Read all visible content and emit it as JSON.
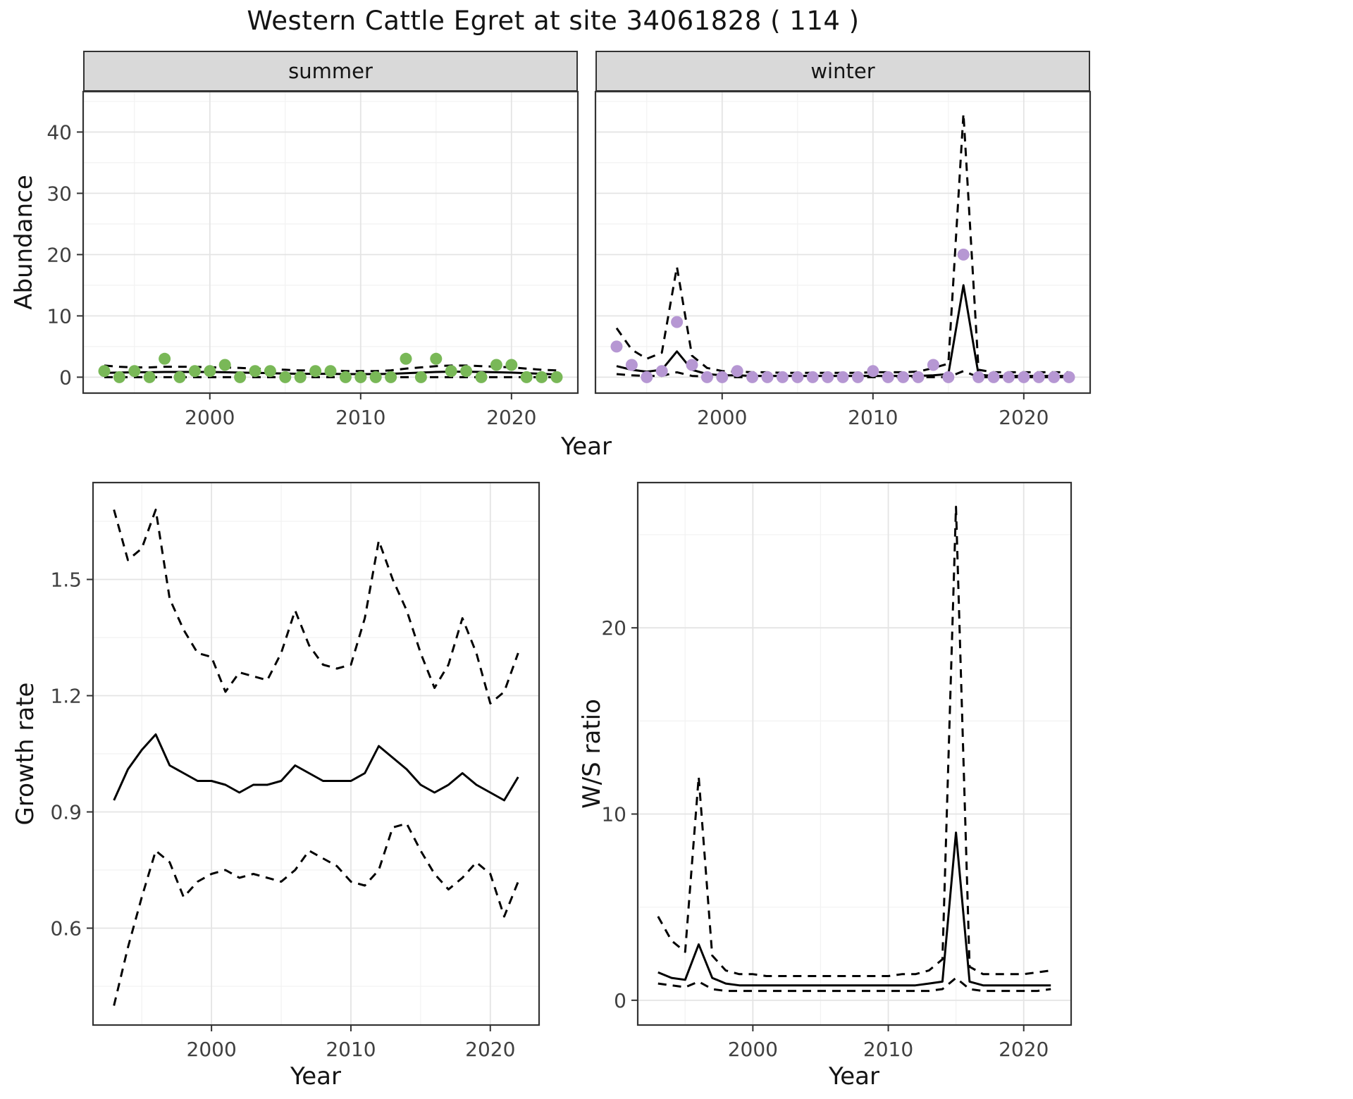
{
  "title": "Western Cattle Egret at site 34061828 ( 114 )",
  "facets": {
    "summer": "summer",
    "winter": "winter"
  },
  "axis_labels": {
    "abundance": "Abundance",
    "year_top": "Year",
    "growth": "Growth rate",
    "ws": "W/S ratio",
    "year_growth": "Year",
    "year_ws": "Year"
  },
  "colors": {
    "summer_point": "#79b857",
    "winter_point": "#b697d3",
    "line": "#000000",
    "grid_major": "#e4e4e4",
    "grid_minor": "#f2f2f2",
    "panel_border": "#333333",
    "tick": "#333333",
    "axis_text": "#404040",
    "strip_bg": "#d9d9d9"
  },
  "chart_data": [
    {
      "id": "summer",
      "type": "line+scatter",
      "facet_label": "summer",
      "xlabel": "Year",
      "ylabel": "Abundance",
      "xlim": [
        1991.6,
        2024.4
      ],
      "ylim": [
        -2.6,
        46.6
      ],
      "xticks": [
        2000,
        2010,
        2020
      ],
      "yticks": [
        0,
        10,
        20,
        30,
        40
      ],
      "xminor": [
        1995,
        2005,
        2015
      ],
      "yminor": [
        5,
        15,
        25,
        35,
        45
      ],
      "years": [
        1993,
        1994,
        1995,
        1996,
        1997,
        1998,
        1999,
        2000,
        2001,
        2002,
        2003,
        2004,
        2005,
        2006,
        2007,
        2008,
        2009,
        2010,
        2011,
        2012,
        2013,
        2014,
        2015,
        2016,
        2017,
        2018,
        2019,
        2020,
        2021,
        2022,
        2023
      ],
      "points": [
        1,
        0,
        1,
        0,
        3,
        0,
        1,
        1,
        2,
        0,
        1,
        1,
        0,
        0,
        1,
        1,
        0,
        0,
        0,
        0,
        3,
        0,
        3,
        1,
        1,
        0,
        2,
        2,
        0,
        0,
        0
      ],
      "fit": [
        0.7,
        0.75,
        0.8,
        0.8,
        0.85,
        0.85,
        0.85,
        0.85,
        0.8,
        0.75,
        0.7,
        0.65,
        0.6,
        0.55,
        0.55,
        0.55,
        0.5,
        0.5,
        0.5,
        0.55,
        0.65,
        0.75,
        0.85,
        0.9,
        0.9,
        0.85,
        0.8,
        0.75,
        0.65,
        0.55,
        0.45
      ],
      "upper": [
        1.9,
        1.7,
        1.6,
        1.6,
        1.7,
        1.7,
        1.7,
        1.6,
        1.6,
        1.5,
        1.4,
        1.3,
        1.2,
        1.1,
        1.1,
        1.1,
        1.0,
        1.0,
        1.0,
        1.1,
        1.4,
        1.6,
        1.8,
        1.9,
        1.9,
        1.8,
        1.7,
        1.6,
        1.4,
        1.2,
        1.1
      ],
      "lower": [
        0,
        0,
        0,
        0,
        0,
        0,
        0,
        0,
        0,
        0,
        0,
        0,
        0,
        0,
        0,
        0,
        0,
        0,
        0,
        0,
        0,
        0,
        0,
        0,
        0,
        0,
        0,
        0,
        0,
        0,
        0
      ],
      "point_color": "#79b857"
    },
    {
      "id": "winter",
      "type": "line+scatter",
      "facet_label": "winter",
      "xlabel": "Year",
      "ylabel": "Abundance",
      "xlim": [
        1991.6,
        2024.4
      ],
      "ylim": [
        -2.6,
        46.6
      ],
      "xticks": [
        2000,
        2010,
        2020
      ],
      "yticks": [
        0,
        10,
        20,
        30,
        40
      ],
      "xminor": [
        1995,
        2005,
        2015
      ],
      "yminor": [
        5,
        15,
        25,
        35,
        45
      ],
      "years": [
        1993,
        1994,
        1995,
        1996,
        1997,
        1998,
        1999,
        2000,
        2001,
        2002,
        2003,
        2004,
        2005,
        2006,
        2007,
        2008,
        2009,
        2010,
        2011,
        2012,
        2013,
        2014,
        2015,
        2016,
        2017,
        2018,
        2019,
        2020,
        2021,
        2022,
        2023
      ],
      "points": [
        5,
        2,
        0,
        1,
        9,
        2,
        0,
        0,
        1,
        0,
        0,
        0,
        0,
        0,
        0,
        0,
        0,
        1,
        0,
        0,
        0,
        2,
        0,
        20,
        0,
        0,
        0,
        0,
        0,
        0,
        0
      ],
      "fit": [
        1.8,
        1.2,
        0.9,
        1.2,
        4.2,
        1.2,
        0.5,
        0.3,
        0.3,
        0.2,
        0.2,
        0.2,
        0.2,
        0.2,
        0.2,
        0.2,
        0.2,
        0.2,
        0.2,
        0.2,
        0.2,
        0.3,
        0.5,
        15,
        0.4,
        0.2,
        0.2,
        0.2,
        0.2,
        0.2,
        0.2
      ],
      "upper": [
        8,
        4.5,
        3,
        4,
        18,
        3.5,
        1.5,
        1,
        0.9,
        0.8,
        0.8,
        0.7,
        0.7,
        0.7,
        0.7,
        0.7,
        0.7,
        0.8,
        0.8,
        0.8,
        0.9,
        1.5,
        2.2,
        43,
        1.2,
        0.8,
        0.8,
        0.8,
        0.8,
        0.8,
        0.8
      ],
      "lower": [
        0.5,
        0.3,
        0.2,
        0.2,
        0.8,
        0.2,
        0.1,
        0,
        0,
        0,
        0,
        0,
        0,
        0,
        0,
        0,
        0,
        0,
        0,
        0,
        0,
        0,
        0,
        1,
        0,
        0,
        0,
        0,
        0,
        0,
        0
      ],
      "point_color": "#b697d3"
    },
    {
      "id": "growth",
      "type": "line",
      "xlabel": "Year",
      "ylabel": "Growth rate",
      "xlim": [
        1991.5,
        2023.5
      ],
      "ylim": [
        0.35,
        1.75
      ],
      "xticks": [
        2000,
        2010,
        2020
      ],
      "yticks": [
        0.6,
        0.9,
        1.2,
        1.5
      ],
      "xminor": [
        1995,
        2005,
        2015
      ],
      "yminor": [
        0.45,
        0.75,
        1.05,
        1.35,
        1.65
      ],
      "years": [
        1993,
        1994,
        1995,
        1996,
        1997,
        1998,
        1999,
        2000,
        2001,
        2002,
        2003,
        2004,
        2005,
        2006,
        2007,
        2008,
        2009,
        2010,
        2011,
        2012,
        2013,
        2014,
        2015,
        2016,
        2017,
        2018,
        2019,
        2020,
        2021,
        2022
      ],
      "fit": [
        0.93,
        1.01,
        1.06,
        1.1,
        1.02,
        1.0,
        0.98,
        0.98,
        0.97,
        0.95,
        0.97,
        0.97,
        0.98,
        1.02,
        1.0,
        0.98,
        0.98,
        0.98,
        1.0,
        1.07,
        1.04,
        1.01,
        0.97,
        0.95,
        0.97,
        1.0,
        0.97,
        0.95,
        0.93,
        0.99
      ],
      "upper": [
        1.68,
        1.55,
        1.58,
        1.68,
        1.45,
        1.37,
        1.31,
        1.3,
        1.21,
        1.26,
        1.25,
        1.24,
        1.31,
        1.42,
        1.33,
        1.28,
        1.27,
        1.28,
        1.4,
        1.6,
        1.5,
        1.42,
        1.31,
        1.22,
        1.28,
        1.4,
        1.31,
        1.18,
        1.21,
        1.31
      ],
      "lower": [
        0.4,
        0.55,
        0.68,
        0.8,
        0.77,
        0.68,
        0.72,
        0.74,
        0.75,
        0.73,
        0.74,
        0.73,
        0.72,
        0.75,
        0.8,
        0.78,
        0.76,
        0.72,
        0.71,
        0.75,
        0.86,
        0.87,
        0.8,
        0.74,
        0.7,
        0.73,
        0.77,
        0.74,
        0.63,
        0.72
      ]
    },
    {
      "id": "ws",
      "type": "line",
      "xlabel": "Year",
      "ylabel": "W/S ratio",
      "xlim": [
        1991.5,
        2023.5
      ],
      "ylim": [
        -1.33,
        27.8
      ],
      "xticks": [
        2000,
        2010,
        2020
      ],
      "yticks": [
        0,
        10,
        20
      ],
      "xminor": [
        1995,
        2005,
        2015
      ],
      "yminor": [
        5,
        15,
        25
      ],
      "years": [
        1993,
        1994,
        1995,
        1996,
        1997,
        1998,
        1999,
        2000,
        2001,
        2002,
        2003,
        2004,
        2005,
        2006,
        2007,
        2008,
        2009,
        2010,
        2011,
        2012,
        2013,
        2014,
        2015,
        2016,
        2017,
        2018,
        2019,
        2020,
        2021,
        2022
      ],
      "fit": [
        1.5,
        1.2,
        1.1,
        3.0,
        1.2,
        0.9,
        0.8,
        0.8,
        0.8,
        0.8,
        0.8,
        0.8,
        0.8,
        0.8,
        0.8,
        0.8,
        0.8,
        0.8,
        0.8,
        0.8,
        0.9,
        1.0,
        9.0,
        1.0,
        0.8,
        0.8,
        0.8,
        0.8,
        0.8,
        0.8
      ],
      "upper": [
        4.5,
        3.2,
        2.6,
        12.0,
        2.4,
        1.6,
        1.4,
        1.4,
        1.3,
        1.3,
        1.3,
        1.3,
        1.3,
        1.3,
        1.3,
        1.3,
        1.3,
        1.3,
        1.4,
        1.4,
        1.6,
        2.2,
        26.5,
        1.8,
        1.4,
        1.4,
        1.4,
        1.4,
        1.5,
        1.6
      ],
      "lower": [
        0.9,
        0.8,
        0.7,
        1.0,
        0.6,
        0.5,
        0.5,
        0.5,
        0.5,
        0.5,
        0.5,
        0.5,
        0.5,
        0.5,
        0.5,
        0.5,
        0.5,
        0.5,
        0.5,
        0.5,
        0.5,
        0.6,
        1.2,
        0.6,
        0.5,
        0.5,
        0.5,
        0.5,
        0.5,
        0.6
      ]
    }
  ]
}
